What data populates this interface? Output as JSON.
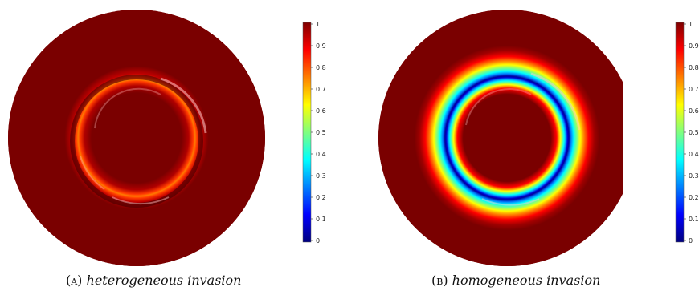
{
  "figures": [
    {
      "id": "a",
      "caption_tag": "(a)",
      "caption_text": "heterogeneous invasion",
      "colorbar_ticks": [
        "0",
        "0.1",
        "0.2",
        "0.3",
        "0.4",
        "0.5",
        "0.6",
        "0.7",
        "0.8",
        "0.9",
        "1"
      ],
      "ring_min_value": 0.78
    },
    {
      "id": "b",
      "caption_tag": "(b)",
      "caption_text": "homogeneous invasion",
      "colorbar_ticks": [
        "0",
        "0.1",
        "0.2",
        "0.3",
        "0.4",
        "0.5",
        "0.6",
        "0.7",
        "0.8",
        "0.9",
        "1"
      ],
      "ring_min_value": 0.0
    }
  ],
  "colors": {
    "outer_disk": "#7a0000",
    "colormap": [
      "#00007f",
      "#0000ff",
      "#007fff",
      "#00ffff",
      "#7fff7f",
      "#ffff00",
      "#ff7f00",
      "#ff0000",
      "#7f0000"
    ]
  }
}
